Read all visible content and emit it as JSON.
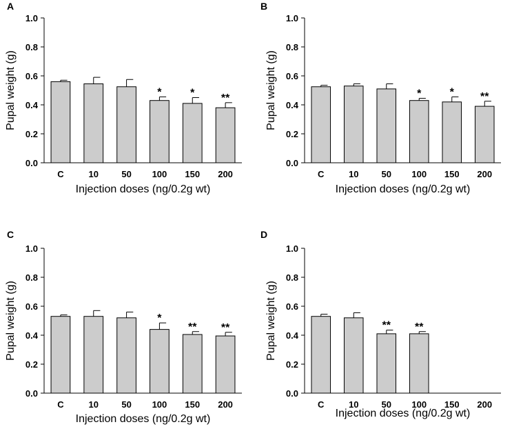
{
  "figure": {
    "bar_color": "#cccccc",
    "edge_color": "#000000"
  },
  "chart_data": [
    {
      "type": "bar",
      "panel": "A",
      "categories": [
        "C",
        "10",
        "50",
        "100",
        "150",
        "200"
      ],
      "values": [
        0.56,
        0.545,
        0.525,
        0.43,
        0.41,
        0.38
      ],
      "errors": [
        0.01,
        0.045,
        0.05,
        0.025,
        0.04,
        0.035
      ],
      "annotations": [
        "",
        "",
        "",
        "*",
        "*",
        "**"
      ],
      "xlabel": "Injection doses (ng/0.2g wt)",
      "ylabel": "Pupal weight (g)",
      "ylim": [
        0,
        1.0
      ],
      "yticks": [
        "0.0",
        "0.2",
        "0.4",
        "0.6",
        "0.8",
        "1.0"
      ]
    },
    {
      "type": "bar",
      "panel": "B",
      "categories": [
        "C",
        "10",
        "50",
        "100",
        "150",
        "200"
      ],
      "values": [
        0.525,
        0.53,
        0.51,
        0.43,
        0.42,
        0.39
      ],
      "errors": [
        0.01,
        0.015,
        0.035,
        0.015,
        0.035,
        0.035
      ],
      "annotations": [
        "",
        "",
        "",
        "*",
        "*",
        "**"
      ],
      "xlabel": "Injection doses (ng/0.2g wt)",
      "ylabel": "Pupal weight (g)",
      "ylim": [
        0,
        1.0
      ],
      "yticks": [
        "0.0",
        "0.2",
        "0.4",
        "0.6",
        "0.8",
        "1.0"
      ]
    },
    {
      "type": "bar",
      "panel": "C",
      "categories": [
        "C",
        "10",
        "50",
        "100",
        "150",
        "200"
      ],
      "values": [
        0.53,
        0.53,
        0.52,
        0.44,
        0.405,
        0.395
      ],
      "errors": [
        0.01,
        0.04,
        0.04,
        0.045,
        0.02,
        0.025
      ],
      "annotations": [
        "",
        "",
        "",
        "*",
        "**",
        "**"
      ],
      "xlabel": "Injection doses (ng/0.2g wt)",
      "ylabel": "Pupal weight (g)",
      "ylim": [
        0,
        1.0
      ],
      "yticks": [
        "0.0",
        "0.2",
        "0.4",
        "0.6",
        "0.8",
        "1.0"
      ]
    },
    {
      "type": "bar",
      "panel": "D",
      "categories": [
        "C",
        "10",
        "50",
        "100",
        "150",
        "200"
      ],
      "values": [
        0.53,
        0.52,
        0.41,
        0.41,
        null,
        null
      ],
      "errors": [
        0.015,
        0.035,
        0.025,
        0.015,
        null,
        null
      ],
      "annotations": [
        "",
        "",
        "**",
        "**",
        "",
        ""
      ],
      "xlabel": "Injection doses (ng/0.2g wt)",
      "ylabel": "Pupal weight (g)",
      "ylim": [
        0,
        1.0
      ],
      "yticks": [
        "0.0",
        "0.2",
        "0.4",
        "0.6",
        "0.8",
        "1.0"
      ]
    }
  ]
}
